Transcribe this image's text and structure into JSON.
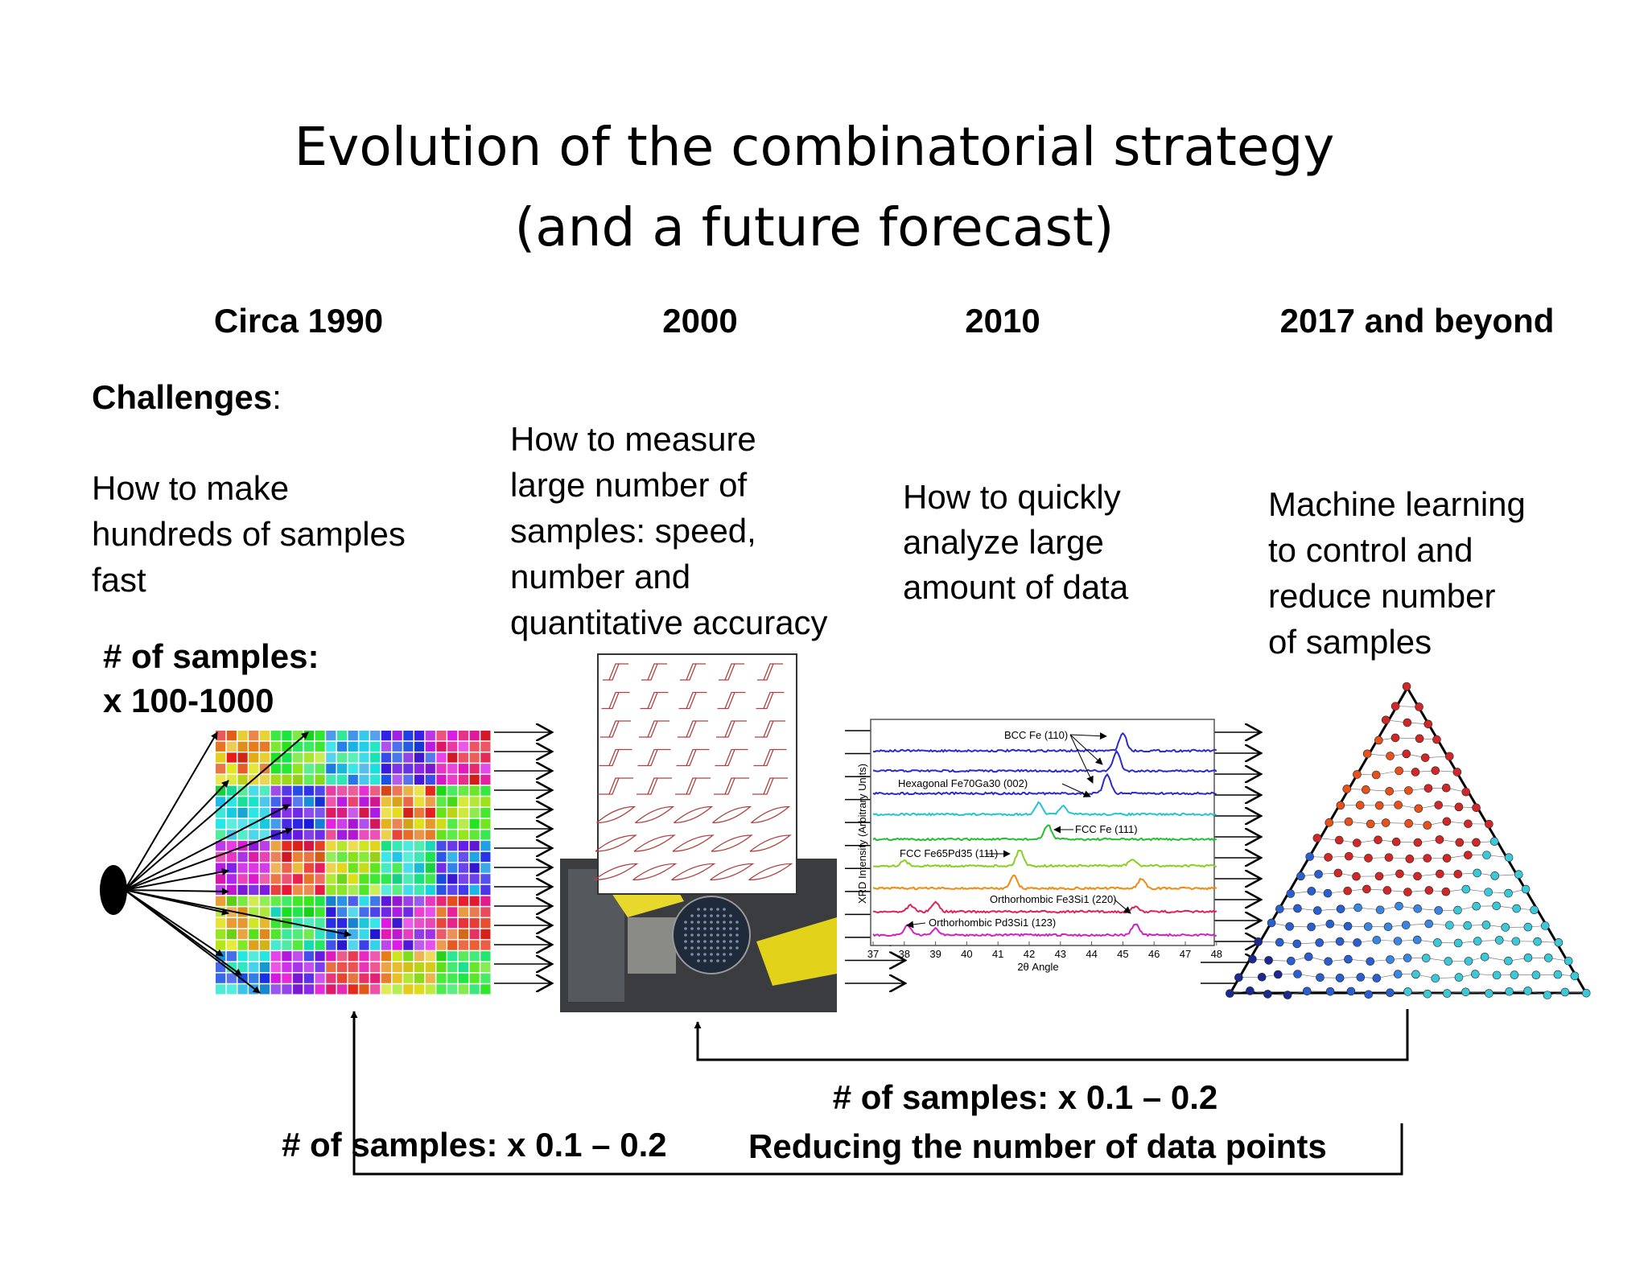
{
  "title": [
    "Evolution of the combinatorial strategy",
    "(and a future forecast)"
  ],
  "challenges_label": {
    "word": "Challenges",
    "colon": ":"
  },
  "columns": [
    {
      "era": "Circa 1990",
      "challenge": [
        "How to make",
        "hundreds of samples",
        "fast"
      ]
    },
    {
      "era": "2000",
      "challenge": [
        "How to measure",
        "large number of",
        "samples: speed,",
        "number and",
        "quantitative accuracy"
      ]
    },
    {
      "era": "2010",
      "challenge": [
        "How to quickly",
        "analyze large",
        "amount of data"
      ]
    },
    {
      "era": "2017 and beyond",
      "challenge": [
        "Machine learning",
        "to control and",
        "reduce number",
        "of samples"
      ]
    }
  ],
  "start_samples": [
    "# of samples:",
    "x 100-1000"
  ],
  "reduction_right": "# of samples: x 0.1 – 0.2",
  "reduction_left": "# of samples: x 0.1 – 0.2",
  "reduction_note": "Reducing the number of data points",
  "xrd_figure": {
    "y_label": "XRD Intensity (Arbitrary Units)",
    "x_label": "2θ Angle",
    "x_ticks": [
      37,
      38,
      39,
      40,
      41,
      42,
      43,
      44,
      45,
      46,
      47,
      48
    ],
    "peak_labels": [
      "BCC Fe (110)",
      "Hexagonal Fe70Ga30 (002)",
      "FCC Fe (111)",
      "FCC Fe65Pd35 (111)",
      "Orthorhombic Fe3Si1 (220)",
      "Orthorhombic Pd3Si1 (123)"
    ]
  }
}
